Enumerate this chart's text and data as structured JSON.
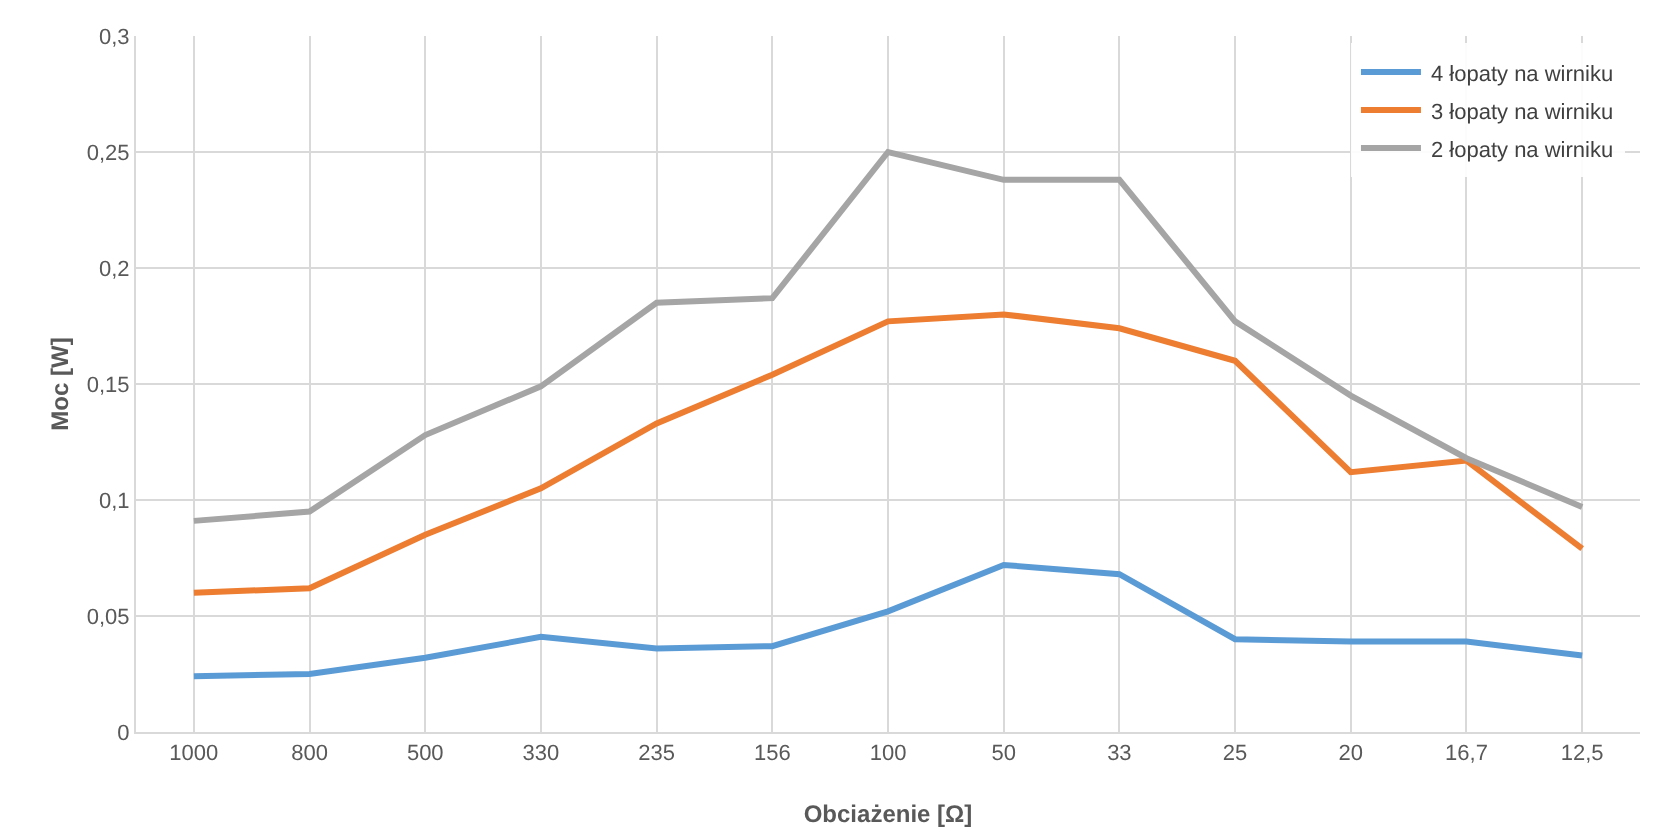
{
  "chart_data": {
    "type": "line",
    "xlabel": "Obciażenie [Ω]",
    "ylabel": "Moc [W]",
    "categories": [
      "1000",
      "800",
      "500",
      "330",
      "235",
      "156",
      "100",
      "50",
      "33",
      "25",
      "20",
      "16,7",
      "12,5"
    ],
    "series": [
      {
        "name": "4 łopaty na wirniku",
        "color": "#5b9bd5",
        "values": [
          0.024,
          0.025,
          0.032,
          0.041,
          0.036,
          0.037,
          0.052,
          0.072,
          0.068,
          0.04,
          0.039,
          0.039,
          0.033
        ]
      },
      {
        "name": "3 łopaty na wirniku",
        "color": "#ed7d31",
        "values": [
          0.06,
          0.062,
          0.085,
          0.105,
          0.133,
          0.154,
          0.177,
          0.18,
          0.174,
          0.16,
          0.112,
          0.117,
          0.079
        ]
      },
      {
        "name": "2 łopaty na wirniku",
        "color": "#a5a5a5",
        "values": [
          0.091,
          0.095,
          0.128,
          0.149,
          0.185,
          0.187,
          0.25,
          0.238,
          0.238,
          0.177,
          0.145,
          0.118,
          0.097
        ]
      }
    ],
    "ylim": [
      0,
      0.3
    ],
    "yticks": [
      0,
      {
        "value": 0.05,
        "label": "0,05"
      },
      {
        "value": 0.1,
        "label": "0,1"
      },
      {
        "value": 0.15,
        "label": "0,15"
      },
      {
        "value": 0.2,
        "label": "0,2"
      },
      {
        "value": 0.25,
        "label": "0,25"
      },
      {
        "value": 0.3,
        "label": "0,3"
      }
    ],
    "grid": true,
    "legend": "top right",
    "marker": "none",
    "line_style": "solid"
  }
}
